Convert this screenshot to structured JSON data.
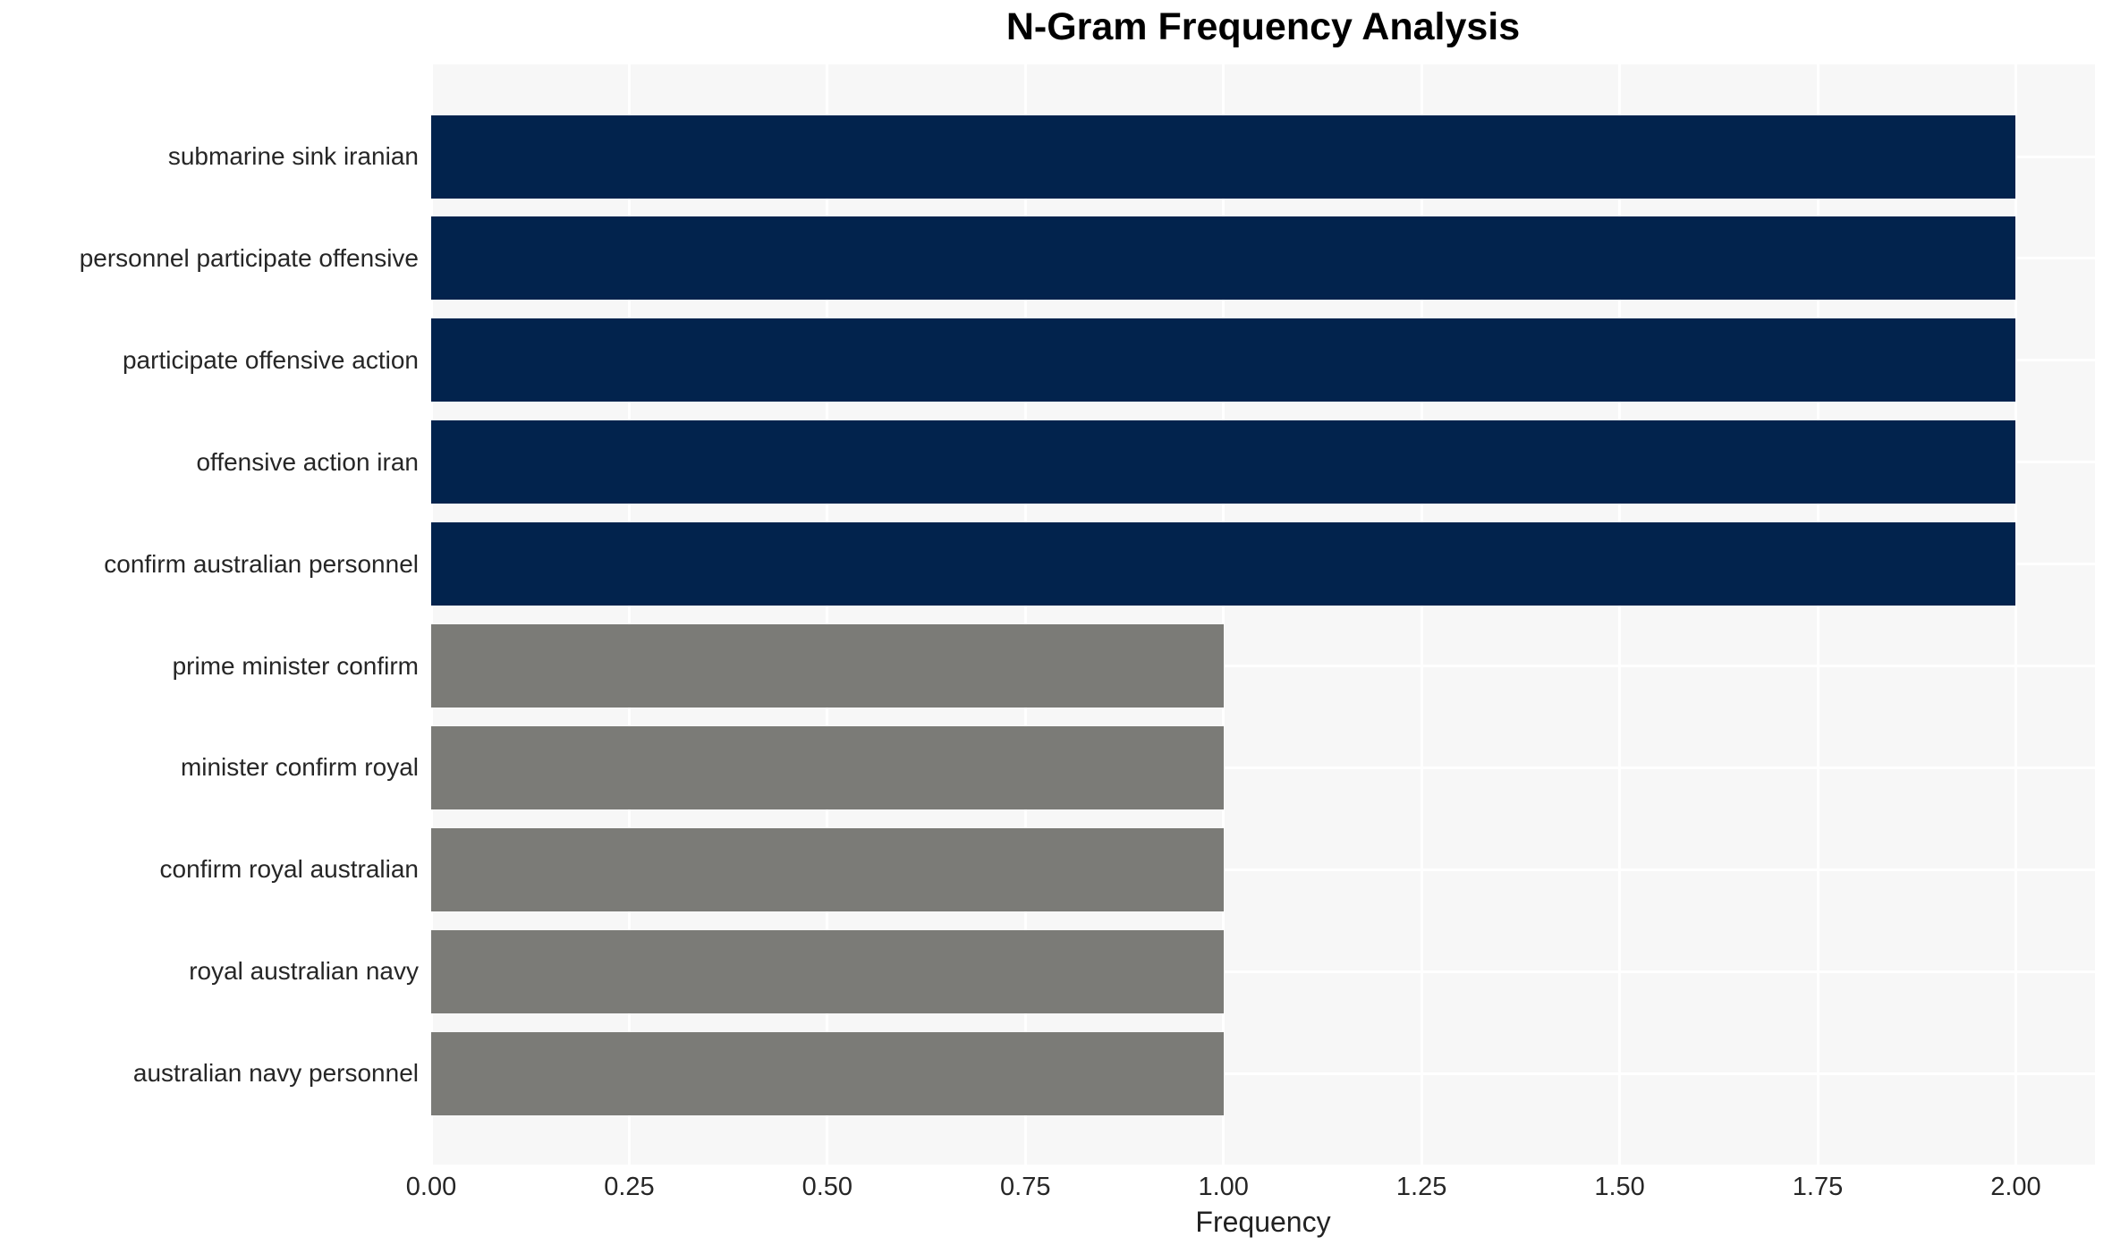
{
  "chart_data": {
    "type": "bar",
    "orientation": "horizontal",
    "title": "N-Gram Frequency Analysis",
    "xlabel": "Frequency",
    "ylabel": "",
    "categories": [
      "submarine sink iranian",
      "personnel participate offensive",
      "participate offensive action",
      "offensive action iran",
      "confirm australian personnel",
      "prime minister confirm",
      "minister confirm royal",
      "confirm royal australian",
      "royal australian navy",
      "australian navy personnel"
    ],
    "values": [
      2,
      2,
      2,
      2,
      2,
      1,
      1,
      1,
      1,
      1
    ],
    "bar_colors": [
      "#02234d",
      "#02234d",
      "#02234d",
      "#02234d",
      "#02234d",
      "#7b7b77",
      "#7b7b77",
      "#7b7b77",
      "#7b7b77",
      "#7b7b77"
    ],
    "x_ticks": {
      "labels": [
        "0.00",
        "0.25",
        "0.50",
        "0.75",
        "1.00",
        "1.25",
        "1.50",
        "1.75",
        "2.00"
      ],
      "values": [
        0,
        0.25,
        0.5,
        0.75,
        1.0,
        1.25,
        1.5,
        1.75,
        2.0
      ]
    },
    "xlim": [
      0,
      2.1
    ],
    "grid": true,
    "legend": false,
    "colors": {
      "highlight_bar": "#02234d",
      "regular_bar": "#7b7b77",
      "plot_background": "#f7f7f7",
      "figure_background": "#ffffff",
      "gridline": "#ffffff",
      "text": "#262626",
      "title_text": "#000000"
    }
  }
}
